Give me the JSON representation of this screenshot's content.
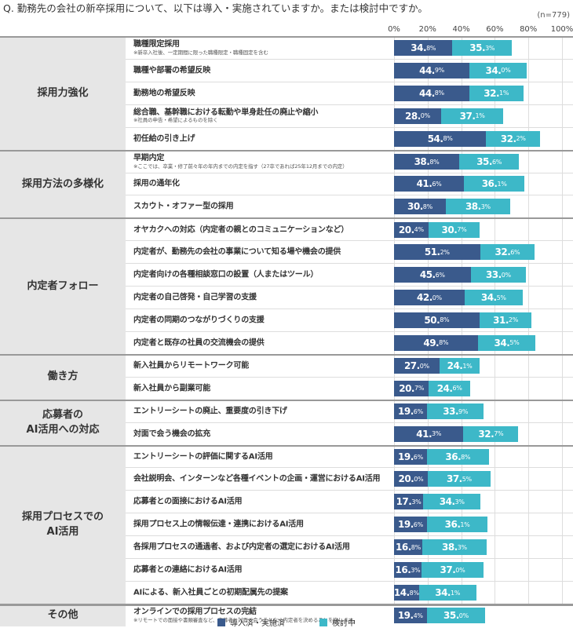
{
  "question": "Q. 勤務先の会社の新卒採用について、以下は導入・実施されていますか。または検討中ですか。",
  "sample": "(n=779)",
  "chart_data": {
    "type": "bar",
    "stacked": true,
    "orientation": "horizontal",
    "xlim": [
      0,
      100
    ],
    "ticks": [
      "0%",
      "20%",
      "40%",
      "60%",
      "80%",
      "100%"
    ],
    "grid": true,
    "legend_position": "bottom",
    "colors": {
      "implemented": "#3a5a8c",
      "considering": "#3db8c8"
    },
    "legend": [
      "導入済・実施済",
      "検討中"
    ],
    "groups": [
      {
        "label": "採用力強化",
        "items": [
          {
            "label": "職種限定採用",
            "note": "※新卒入社後、一定期間に限った職種限定・職種固定を含む",
            "values": [
              34.8,
              35.3
            ]
          },
          {
            "label": "職種や部署の希望反映",
            "values": [
              44.9,
              34.0
            ]
          },
          {
            "label": "勤務地の希望反映",
            "values": [
              44.8,
              32.1
            ]
          },
          {
            "label": "総合職、基幹職における転勤や単身赴任の廃止や縮小",
            "note": "※社員の申告・希望によるものを除く",
            "values": [
              28.0,
              37.1
            ]
          },
          {
            "label": "初任給の引き上げ",
            "values": [
              54.8,
              32.2
            ]
          }
        ]
      },
      {
        "label": "採用方法の多様化",
        "items": [
          {
            "label": "早期内定",
            "note": "※ここでは、卒業・修了前々年の年内までの内定を指す（27卒であれば25年12月までの内定）",
            "values": [
              38.8,
              35.6
            ]
          },
          {
            "label": "採用の通年化",
            "values": [
              41.6,
              36.1
            ]
          },
          {
            "label": "スカウト・オファー型の採用",
            "values": [
              30.8,
              38.3
            ]
          }
        ]
      },
      {
        "label": "内定者フォロー",
        "items": [
          {
            "label": "オヤカクへの対応（内定者の親とのコミュニケーションなど）",
            "values": [
              20.4,
              30.7
            ]
          },
          {
            "label": "内定者が、勤務先の会社の事業について知る場や機会の提供",
            "values": [
              51.2,
              32.6
            ]
          },
          {
            "label": "内定者向けの各種相談窓口の設置（人またはツール）",
            "values": [
              45.6,
              33.0
            ]
          },
          {
            "label": "内定者の自己啓発・自己学習の支援",
            "values": [
              42.0,
              34.5
            ]
          },
          {
            "label": "内定者の同期のつながりづくりの支援",
            "values": [
              50.8,
              31.2
            ]
          },
          {
            "label": "内定者と既存の社員の交流機会の提供",
            "values": [
              49.8,
              34.5
            ]
          }
        ]
      },
      {
        "label": "働き方",
        "items": [
          {
            "label": "新入社員からリモートワーク可能",
            "values": [
              27.0,
              24.1
            ]
          },
          {
            "label": "新入社員から副業可能",
            "values": [
              20.7,
              24.6
            ]
          }
        ]
      },
      {
        "label": "応募者の\nAI活用への対応",
        "items": [
          {
            "label": "エントリーシートの廃止、重要度の引き下げ",
            "values": [
              19.6,
              33.9
            ]
          },
          {
            "label": "対面で会う機会の拡充",
            "values": [
              41.3,
              32.7
            ]
          }
        ]
      },
      {
        "label": "採用プロセスでの\nAI活用",
        "items": [
          {
            "label": "エントリーシートの評価に関するAI活用",
            "values": [
              19.6,
              36.8
            ]
          },
          {
            "label": "会社説明会、インターンなど各種イベントの企画・運営におけるAI活用",
            "values": [
              20.0,
              37.5
            ]
          },
          {
            "label": "応募者との面接におけるAI活用",
            "values": [
              17.3,
              34.3
            ]
          },
          {
            "label": "採用プロセス上の情報伝達・連携におけるAI活用",
            "values": [
              19.6,
              36.1
            ]
          },
          {
            "label": "各採用プロセスの通過者、および内定者の選定におけるAI活用",
            "values": [
              16.8,
              38.3
            ]
          },
          {
            "label": "応募者との連絡におけるAI活用",
            "values": [
              16.3,
              37.0
            ]
          },
          {
            "label": "AIによる、新入社員ごとの初期配属先の提案",
            "values": [
              14.8,
              34.1
            ]
          }
        ]
      },
      {
        "label": "その他",
        "items": [
          {
            "label": "オンラインでの採用プロセスの完結",
            "note": "※リモートでの面接や書類審査など、応募者と対面で会うことなく内定者を決めることを指します。",
            "values": [
              19.4,
              35.0
            ]
          }
        ]
      }
    ]
  }
}
